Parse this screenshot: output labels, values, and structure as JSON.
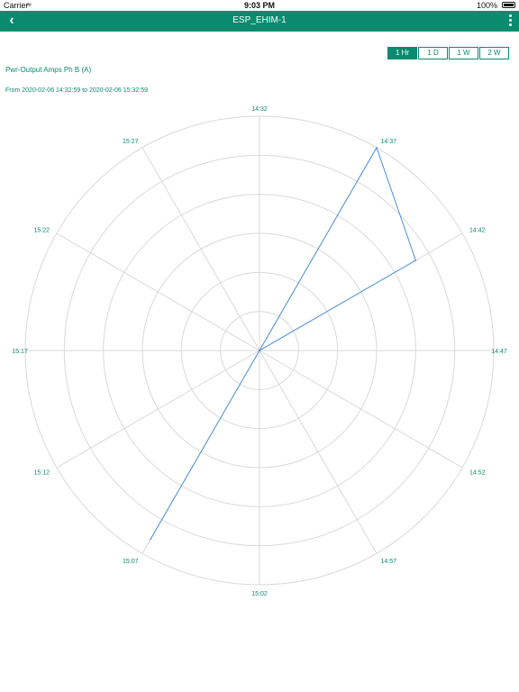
{
  "status_bar": {
    "carrier": "Carrier",
    "time": "9:03 PM",
    "battery": "100%"
  },
  "nav": {
    "title": "ESP_EHIM-1"
  },
  "range_buttons": [
    {
      "label": "1 Hr",
      "active": true
    },
    {
      "label": "1 D",
      "active": false
    },
    {
      "label": "1 W",
      "active": false
    },
    {
      "label": "2 W",
      "active": false
    }
  ],
  "chart_header": {
    "title": "Pwr-Output Amps Ph B (A)",
    "range": "From 2020-02-06 14:32:59 to 2020-02-06 15:32:59"
  },
  "colors": {
    "accent": "#0a8a6e",
    "series": "#4a90d9",
    "grid": "#d9d9d9"
  },
  "chart_data": {
    "type": "radar",
    "categories": [
      "14:32",
      "14:37",
      "14:42",
      "14:47",
      "14:52",
      "14:57",
      "15:02",
      "15:07",
      "15:12",
      "15:17",
      "15:22",
      "15:27"
    ],
    "rings": 6,
    "series": [
      {
        "values": [
          0,
          1.0,
          0.77,
          0,
          0,
          0,
          0,
          0.93,
          0,
          0,
          0,
          0
        ]
      }
    ]
  }
}
